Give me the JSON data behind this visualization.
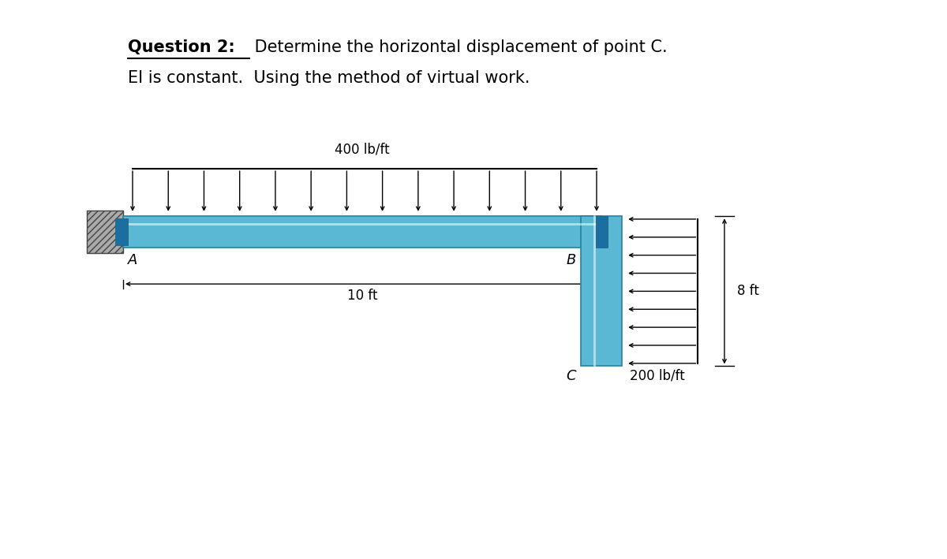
{
  "title_bold": "Question 2:",
  "title_normal": " Determine the horizontal displacement of point C.",
  "subtitle": "EI is constant.  Using the method of virtual work.",
  "background_color": "#ffffff",
  "beam_color": "#5bb8d4",
  "beam_edge_color": "#2a7fa0",
  "load_400_label": "400 lb/ft",
  "load_200_label": "200 lb/ft",
  "dim_10ft": "10 ft",
  "dim_8ft": "8 ft",
  "label_A": "A",
  "label_B": "B",
  "label_C": "C"
}
